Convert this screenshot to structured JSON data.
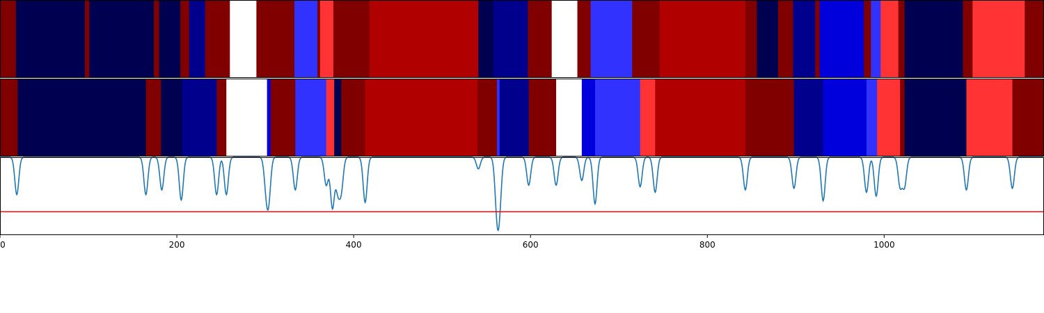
{
  "chart_data": [
    {
      "type": "heatmap",
      "panel": "track-top",
      "xlim": [
        0,
        1180
      ],
      "colors": {
        "white": "#ffffff",
        "dark_navy": "#000050",
        "navy": "#00008c",
        "blue": "#0000dc",
        "light_blue": "#3232ff",
        "dark_red": "#800000",
        "red": "#b00000",
        "light_red": "#ff3333"
      },
      "segments": [
        {
          "x0": 0,
          "x1": 18,
          "color": "dark_red"
        },
        {
          "x0": 18,
          "x1": 96,
          "color": "dark_navy"
        },
        {
          "x0": 96,
          "x1": 101,
          "color": "dark_red"
        },
        {
          "x0": 101,
          "x1": 174,
          "color": "dark_navy"
        },
        {
          "x0": 174,
          "x1": 180,
          "color": "dark_red"
        },
        {
          "x0": 180,
          "x1": 204,
          "color": "dark_navy"
        },
        {
          "x0": 204,
          "x1": 214,
          "color": "dark_red"
        },
        {
          "x0": 214,
          "x1": 232,
          "color": "navy"
        },
        {
          "x0": 232,
          "x1": 260,
          "color": "dark_red"
        },
        {
          "x0": 260,
          "x1": 290,
          "color": "white"
        },
        {
          "x0": 290,
          "x1": 333,
          "color": "dark_red"
        },
        {
          "x0": 333,
          "x1": 359,
          "color": "light_blue"
        },
        {
          "x0": 359,
          "x1": 362,
          "color": "dark_red"
        },
        {
          "x0": 362,
          "x1": 377,
          "color": "light_red"
        },
        {
          "x0": 377,
          "x1": 418,
          "color": "dark_red"
        },
        {
          "x0": 418,
          "x1": 541,
          "color": "red"
        },
        {
          "x0": 541,
          "x1": 558,
          "color": "dark_navy"
        },
        {
          "x0": 558,
          "x1": 597,
          "color": "navy"
        },
        {
          "x0": 597,
          "x1": 624,
          "color": "dark_red"
        },
        {
          "x0": 624,
          "x1": 653,
          "color": "white"
        },
        {
          "x0": 653,
          "x1": 668,
          "color": "dark_red"
        },
        {
          "x0": 668,
          "x1": 715,
          "color": "light_blue"
        },
        {
          "x0": 715,
          "x1": 746,
          "color": "dark_red"
        },
        {
          "x0": 746,
          "x1": 843,
          "color": "red"
        },
        {
          "x0": 843,
          "x1": 856,
          "color": "dark_red"
        },
        {
          "x0": 856,
          "x1": 880,
          "color": "dark_navy"
        },
        {
          "x0": 880,
          "x1": 897,
          "color": "dark_red"
        },
        {
          "x0": 897,
          "x1": 922,
          "color": "navy"
        },
        {
          "x0": 922,
          "x1": 927,
          "color": "dark_red"
        },
        {
          "x0": 927,
          "x1": 977,
          "color": "blue"
        },
        {
          "x0": 977,
          "x1": 985,
          "color": "dark_red"
        },
        {
          "x0": 985,
          "x1": 996,
          "color": "light_blue"
        },
        {
          "x0": 996,
          "x1": 1016,
          "color": "light_red"
        },
        {
          "x0": 1016,
          "x1": 1023,
          "color": "dark_red"
        },
        {
          "x0": 1023,
          "x1": 1089,
          "color": "dark_navy"
        },
        {
          "x0": 1089,
          "x1": 1100,
          "color": "dark_red"
        },
        {
          "x0": 1100,
          "x1": 1159,
          "color": "light_red"
        },
        {
          "x0": 1159,
          "x1": 1180,
          "color": "dark_red"
        }
      ]
    },
    {
      "type": "heatmap",
      "panel": "track-middle",
      "xlim": [
        0,
        1180
      ],
      "colors": {
        "white": "#ffffff",
        "dark_navy": "#000050",
        "navy": "#00008c",
        "blue": "#0000dc",
        "light_blue": "#3232ff",
        "dark_red": "#800000",
        "red": "#b00000",
        "light_red": "#ff3333"
      },
      "segments": [
        {
          "x0": 0,
          "x1": 20,
          "color": "dark_red"
        },
        {
          "x0": 20,
          "x1": 165,
          "color": "dark_navy"
        },
        {
          "x0": 165,
          "x1": 182,
          "color": "dark_red"
        },
        {
          "x0": 182,
          "x1": 206,
          "color": "dark_navy"
        },
        {
          "x0": 206,
          "x1": 245,
          "color": "navy"
        },
        {
          "x0": 245,
          "x1": 256,
          "color": "dark_red"
        },
        {
          "x0": 256,
          "x1": 302,
          "color": "white"
        },
        {
          "x0": 302,
          "x1": 306,
          "color": "blue"
        },
        {
          "x0": 306,
          "x1": 334,
          "color": "dark_red"
        },
        {
          "x0": 334,
          "x1": 369,
          "color": "light_blue"
        },
        {
          "x0": 369,
          "x1": 378,
          "color": "light_red"
        },
        {
          "x0": 378,
          "x1": 386,
          "color": "dark_navy"
        },
        {
          "x0": 386,
          "x1": 413,
          "color": "dark_red"
        },
        {
          "x0": 413,
          "x1": 540,
          "color": "red"
        },
        {
          "x0": 540,
          "x1": 562,
          "color": "dark_red"
        },
        {
          "x0": 562,
          "x1": 565,
          "color": "light_blue"
        },
        {
          "x0": 565,
          "x1": 598,
          "color": "navy"
        },
        {
          "x0": 598,
          "x1": 629,
          "color": "dark_red"
        },
        {
          "x0": 629,
          "x1": 658,
          "color": "white"
        },
        {
          "x0": 658,
          "x1": 673,
          "color": "blue"
        },
        {
          "x0": 673,
          "x1": 724,
          "color": "light_blue"
        },
        {
          "x0": 724,
          "x1": 741,
          "color": "light_red"
        },
        {
          "x0": 741,
          "x1": 843,
          "color": "red"
        },
        {
          "x0": 843,
          "x1": 898,
          "color": "dark_red"
        },
        {
          "x0": 898,
          "x1": 931,
          "color": "navy"
        },
        {
          "x0": 931,
          "x1": 980,
          "color": "blue"
        },
        {
          "x0": 980,
          "x1": 992,
          "color": "light_blue"
        },
        {
          "x0": 992,
          "x1": 1018,
          "color": "light_red"
        },
        {
          "x0": 1018,
          "x1": 1023,
          "color": "dark_red"
        },
        {
          "x0": 1023,
          "x1": 1093,
          "color": "dark_navy"
        },
        {
          "x0": 1093,
          "x1": 1145,
          "color": "light_red"
        },
        {
          "x0": 1145,
          "x1": 1180,
          "color": "dark_red"
        }
      ]
    },
    {
      "type": "line",
      "panel": "signal",
      "xlim": [
        0,
        1180
      ],
      "ylim": [
        0,
        1
      ],
      "threshold": 0.3,
      "line_color": "#1f77b4",
      "threshold_color": "#ff0000",
      "baseline": 1.0,
      "dips": [
        {
          "x": 19,
          "depth": 0.48
        },
        {
          "x": 165,
          "depth": 0.48
        },
        {
          "x": 183,
          "depth": 0.42
        },
        {
          "x": 205,
          "depth": 0.55
        },
        {
          "x": 245,
          "depth": 0.48
        },
        {
          "x": 256,
          "depth": 0.48
        },
        {
          "x": 301,
          "depth": 0.36
        },
        {
          "x": 304,
          "depth": 0.48
        },
        {
          "x": 334,
          "depth": 0.42
        },
        {
          "x": 369,
          "depth": 0.36
        },
        {
          "x": 376,
          "depth": 0.65
        },
        {
          "x": 382,
          "depth": 0.4
        },
        {
          "x": 386,
          "depth": 0.4
        },
        {
          "x": 413,
          "depth": 0.58
        },
        {
          "x": 541,
          "depth": 0.15
        },
        {
          "x": 562,
          "depth": 0.62
        },
        {
          "x": 565,
          "depth": 0.55
        },
        {
          "x": 598,
          "depth": 0.36
        },
        {
          "x": 629,
          "depth": 0.36
        },
        {
          "x": 658,
          "depth": 0.3
        },
        {
          "x": 673,
          "depth": 0.6
        },
        {
          "x": 724,
          "depth": 0.38
        },
        {
          "x": 741,
          "depth": 0.45
        },
        {
          "x": 843,
          "depth": 0.42
        },
        {
          "x": 898,
          "depth": 0.4
        },
        {
          "x": 931,
          "depth": 0.56
        },
        {
          "x": 980,
          "depth": 0.45
        },
        {
          "x": 991,
          "depth": 0.5
        },
        {
          "x": 1018,
          "depth": 0.37
        },
        {
          "x": 1023,
          "depth": 0.37
        },
        {
          "x": 1093,
          "depth": 0.42
        },
        {
          "x": 1145,
          "depth": 0.4
        }
      ],
      "xticks": [
        0,
        200,
        400,
        600,
        800,
        1000
      ],
      "xticklabels": [
        "0",
        "200",
        "400",
        "600",
        "800",
        "1000"
      ]
    }
  ]
}
